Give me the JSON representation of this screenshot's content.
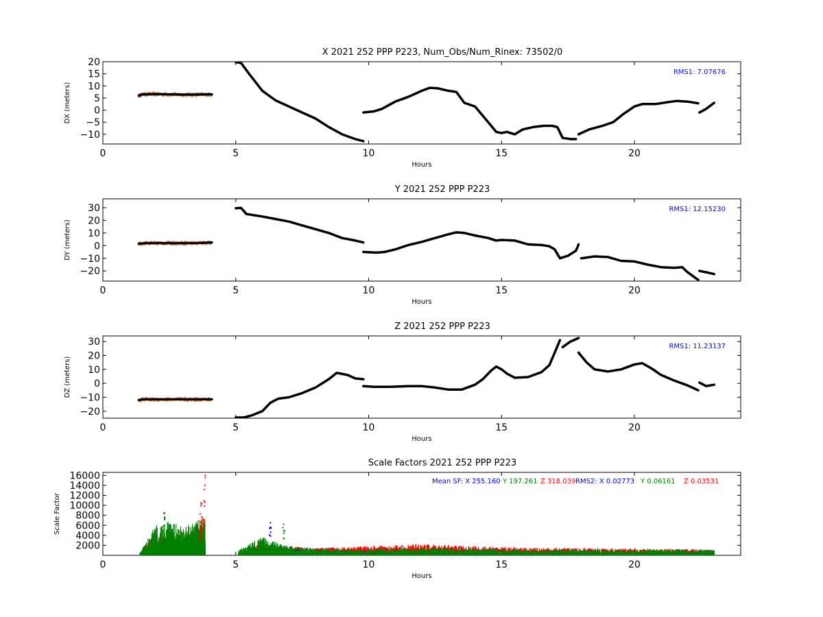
{
  "chart_data": [
    {
      "type": "scatter",
      "title": "X 2021 252 PPP  P223, Num_Obs/Num_Rinex: 73502/0",
      "xlabel": "Hours",
      "ylabel": "DX (meters)",
      "xlim": [
        0,
        24
      ],
      "ylim": [
        -14,
        20
      ],
      "xticks": [
        "0",
        "5",
        "10",
        "15",
        "20"
      ],
      "yticks": [
        "20",
        "15",
        "10",
        "5",
        "0",
        "−5",
        "−10"
      ],
      "annotation": "RMS1:  7.07676",
      "annotation_color": "#0000ff",
      "colors": {
        "points": "#000000",
        "scatter": "#e07b39"
      },
      "series": [
        {
          "x": [
            1.35,
            1.5,
            2.0,
            2.5,
            3.0,
            3.5,
            4.1
          ],
          "y": [
            6.0,
            6.5,
            6.6,
            6.5,
            6.4,
            6.4,
            6.5
          ]
        },
        {
          "x": [
            5.0,
            5.2,
            5.5,
            6.0,
            6.5,
            7.0,
            7.5,
            8.0,
            8.5,
            9.0,
            9.5,
            9.8
          ],
          "y": [
            19.8,
            19.5,
            15.0,
            8.0,
            4.0,
            1.5,
            -1.0,
            -3.5,
            -7.0,
            -10.0,
            -12.0,
            -12.8
          ]
        },
        {
          "x": [
            9.8,
            10.2,
            10.5,
            11.0,
            11.5,
            12.0,
            12.3,
            12.6,
            13.0,
            13.3,
            13.6,
            14.0,
            14.5,
            14.8,
            15.0,
            15.2,
            15.5,
            15.8,
            16.2,
            16.6,
            16.9,
            17.1,
            17.3,
            17.6,
            17.8
          ],
          "y": [
            -1.0,
            -0.5,
            0.5,
            3.5,
            5.5,
            8.0,
            9.2,
            9.0,
            8.0,
            7.5,
            3.0,
            1.5,
            -5.0,
            -9.0,
            -9.5,
            -9.0,
            -10.0,
            -8.0,
            -7.0,
            -6.5,
            -6.5,
            -7.0,
            -11.5,
            -12.0,
            -12.0
          ]
        },
        {
          "x": [
            17.9,
            18.3,
            18.8,
            19.2,
            19.6,
            20.0,
            20.3,
            20.8,
            21.2,
            21.6,
            22.0,
            22.4
          ],
          "y": [
            -10.0,
            -8.0,
            -6.5,
            -5.0,
            -1.5,
            1.5,
            2.5,
            2.5,
            3.2,
            3.8,
            3.5,
            2.8
          ]
        },
        {
          "x": [
            22.45,
            22.7,
            23.0
          ],
          "y": [
            -1.0,
            0.5,
            3.0
          ]
        }
      ]
    },
    {
      "type": "scatter",
      "title": "Y 2021 252 PPP  P223",
      "xlabel": "Hours",
      "ylabel": "DY (meters)",
      "xlim": [
        0,
        24
      ],
      "ylim": [
        -28,
        37
      ],
      "xticks": [
        "0",
        "5",
        "10",
        "15",
        "20"
      ],
      "yticks": [
        "30",
        "20",
        "10",
        "0",
        "−10",
        "−20"
      ],
      "annotation": "RMS1: 12.15230",
      "annotation_color": "#0000ff",
      "colors": {
        "points": "#000000",
        "scatter": "#e07b39"
      },
      "series": [
        {
          "x": [
            1.35,
            1.6,
            2.0,
            2.5,
            3.0,
            3.5,
            4.1
          ],
          "y": [
            1.5,
            2.0,
            2.0,
            2.0,
            2.0,
            2.0,
            2.5
          ]
        },
        {
          "x": [
            5.0,
            5.2,
            5.4,
            6.0,
            6.5,
            7.0,
            7.5,
            8.0,
            8.5,
            9.0,
            9.5,
            9.8
          ],
          "y": [
            29.5,
            29.8,
            25.0,
            23.0,
            21.0,
            19.0,
            16.0,
            13.0,
            10.0,
            6.0,
            4.0,
            2.5
          ]
        },
        {
          "x": [
            9.8,
            10.3,
            10.6,
            11.0,
            11.5,
            12.0,
            12.5,
            13.0,
            13.3,
            13.6,
            14.0,
            14.5,
            14.8,
            15.0,
            15.5,
            16.0,
            16.5,
            16.8,
            17.0,
            17.2,
            17.5,
            17.8,
            17.9
          ],
          "y": [
            -5.0,
            -5.5,
            -5.0,
            -3.0,
            0.5,
            3.0,
            6.0,
            9.0,
            10.5,
            10.0,
            8.0,
            6.0,
            4.0,
            4.5,
            4.0,
            1.0,
            0.5,
            -0.5,
            -3.0,
            -10.0,
            -8.0,
            -4.0,
            1.0
          ]
        },
        {
          "x": [
            18.0,
            18.5,
            19.0,
            19.5,
            20.0,
            20.5,
            21.0,
            21.5,
            21.8,
            22.0,
            22.4
          ],
          "y": [
            -10.0,
            -8.5,
            -9.0,
            -12.0,
            -12.5,
            -15.0,
            -17.0,
            -17.5,
            -17.0,
            -21.0,
            -27.0
          ]
        },
        {
          "x": [
            22.45,
            22.7,
            23.0
          ],
          "y": [
            -20.0,
            -21.0,
            -22.5
          ]
        }
      ]
    },
    {
      "type": "scatter",
      "title": "Z 2021 252 PPP  P223",
      "xlabel": "Hours",
      "ylabel": "DZ (meters)",
      "xlim": [
        0,
        24
      ],
      "ylim": [
        -25,
        34
      ],
      "xticks": [
        "0",
        "5",
        "10",
        "15",
        "20"
      ],
      "yticks": [
        "30",
        "20",
        "10",
        "0",
        "−10",
        "−20"
      ],
      "annotation": "RMS1: 11.23137",
      "annotation_color": "#0000ff",
      "colors": {
        "points": "#000000",
        "scatter": "#e07b39"
      },
      "series": [
        {
          "x": [
            1.35,
            1.5,
            2.0,
            2.5,
            3.0,
            3.5,
            4.1
          ],
          "y": [
            -12.0,
            -11.5,
            -11.5,
            -11.5,
            -11.5,
            -11.5,
            -11.5
          ]
        },
        {
          "x": [
            5.0,
            5.3,
            5.6,
            6.0,
            6.3,
            6.6,
            7.0,
            7.5,
            8.0,
            8.5,
            8.8,
            9.2,
            9.5,
            9.8
          ],
          "y": [
            -24.5,
            -24.5,
            -23.0,
            -20.0,
            -14.0,
            -11.0,
            -10.0,
            -7.0,
            -3.0,
            3.0,
            7.5,
            6.0,
            3.5,
            3.0
          ]
        },
        {
          "x": [
            9.8,
            10.2,
            10.8,
            11.5,
            12.0,
            12.5,
            13.0,
            13.5,
            14.0,
            14.3,
            14.6,
            14.8,
            15.0,
            15.2,
            15.5,
            16.0,
            16.5,
            16.8,
            17.0,
            17.2
          ],
          "y": [
            -2.0,
            -2.5,
            -2.5,
            -2.0,
            -2.0,
            -3.0,
            -4.5,
            -4.5,
            -1.0,
            3.0,
            9.0,
            12.0,
            10.0,
            7.0,
            4.0,
            4.5,
            8.0,
            13.0,
            22.0,
            31.0
          ]
        },
        {
          "x": [
            17.3,
            17.6,
            17.9
          ],
          "y": [
            26.0,
            30.0,
            32.5
          ]
        },
        {
          "x": [
            17.9,
            18.2,
            18.5,
            19.0,
            19.5,
            20.0,
            20.3,
            20.7,
            21.0,
            21.5,
            22.0,
            22.4
          ],
          "y": [
            22.0,
            15.0,
            10.0,
            8.5,
            10.0,
            13.5,
            14.5,
            10.0,
            6.0,
            2.0,
            -1.5,
            -5.0
          ]
        },
        {
          "x": [
            22.45,
            22.7,
            23.0
          ],
          "y": [
            0.5,
            -2.0,
            -1.0
          ]
        }
      ]
    },
    {
      "type": "scatter",
      "title": "Scale Factors 2021 252 PPP  P223",
      "xlabel": "Hours",
      "ylabel": "Scale Factor",
      "xlim": [
        0,
        24
      ],
      "ylim": [
        0,
        16600
      ],
      "xticks": [
        "0",
        "5",
        "10",
        "15",
        "20"
      ],
      "yticks": [
        "16000",
        "14000",
        "12000",
        "10000",
        "8000",
        "6000",
        "4000",
        "2000"
      ],
      "stats": [
        {
          "text": "Mean SF: X 255.160",
          "color": "#0000cc"
        },
        {
          "text": "Y 197.261",
          "color": "#008000"
        },
        {
          "text": "Z 318.039",
          "color": "#ff0000"
        },
        {
          "text": "RMS2: X  0.02773",
          "color": "#0000cc"
        },
        {
          "text": "Y  0.06161",
          "color": "#008000"
        },
        {
          "text": "Z  0.03531",
          "color": "#ff0000"
        }
      ],
      "series": [
        {
          "name": "X",
          "color": "#0000cc",
          "x": [
            1.4,
            2.0,
            2.5,
            3.0,
            3.5,
            3.85,
            5.1,
            6.0,
            6.8,
            8.0,
            10.0,
            12.0,
            14.0,
            16.0,
            18.0,
            20.0,
            22.0,
            23.0
          ],
          "y": [
            300,
            1800,
            1500,
            1400,
            1600,
            1800,
            300,
            800,
            1200,
            900,
            700,
            600,
            500,
            500,
            500,
            500,
            600,
            700
          ]
        },
        {
          "name": "Y",
          "color": "#008000",
          "x": [
            1.4,
            2.0,
            2.5,
            3.0,
            3.5,
            3.85,
            5.1,
            6.0,
            6.8,
            8.0,
            10.0,
            12.0,
            14.0,
            16.0,
            18.0,
            20.0,
            22.0,
            23.0
          ],
          "y": [
            500,
            5000,
            5500,
            4500,
            5500,
            6000,
            800,
            3000,
            1600,
            1100,
            1000,
            1300,
            1200,
            900,
            1000,
            900,
            1000,
            900
          ]
        },
        {
          "name": "Z",
          "color": "#ff0000",
          "x": [
            1.4,
            2.0,
            2.5,
            3.0,
            3.5,
            3.85,
            5.1,
            6.0,
            6.8,
            8.0,
            10.0,
            12.0,
            14.0,
            16.0,
            18.0,
            20.0,
            22.0,
            23.0
          ],
          "y": [
            400,
            3500,
            3000,
            3500,
            4500,
            7000,
            600,
            2000,
            1500,
            1200,
            1500,
            1800,
            1500,
            1200,
            1200,
            1100,
            1000,
            900
          ]
        }
      ],
      "peaks": [
        {
          "x": 2.3,
          "y": 8500,
          "color": "#008000"
        },
        {
          "x": 3.7,
          "y": 10500,
          "color": "#ff0000"
        },
        {
          "x": 3.85,
          "y": 16000,
          "color": "#ff0000"
        },
        {
          "x": 6.3,
          "y": 6500,
          "color": "#0000cc"
        },
        {
          "x": 6.8,
          "y": 6200,
          "color": "#008000"
        }
      ]
    }
  ]
}
